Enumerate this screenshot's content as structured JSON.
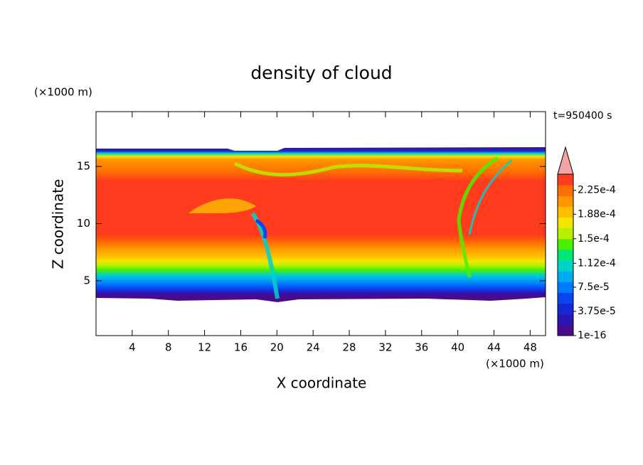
{
  "chart_data": {
    "type": "contour",
    "title": "density of cloud",
    "x_label": "X coordinate",
    "y_label": "Z coordinate",
    "x_unit": "(×1000 m)",
    "y_unit": "(×1000 m)",
    "annotation": "t=950400 s",
    "xlim": [
      0,
      49.7
    ],
    "xticks": [
      4,
      8,
      12,
      16,
      20,
      24,
      28,
      32,
      36,
      40,
      44,
      48
    ],
    "ylim": [
      0.2,
      19.8
    ],
    "yticks": [
      5,
      10,
      15
    ],
    "colorbar": {
      "clim": [
        1e-16,
        0.00025
      ],
      "ticks": [
        {
          "value": 1e-16,
          "label": "1e-16"
        },
        {
          "value": 3.75e-05,
          "label": "3.75e-5"
        },
        {
          "value": 7.5e-05,
          "label": "7.5e-5"
        },
        {
          "value": 0.000112,
          "label": "1.12e-4"
        },
        {
          "value": 0.00015,
          "label": "1.5e-4"
        },
        {
          "value": 0.000188,
          "label": "1.88e-4"
        },
        {
          "value": 0.000225,
          "label": "2.25e-4"
        }
      ],
      "colors": [
        "#4a0a8a",
        "#2a14b4",
        "#1428d2",
        "#0a46f0",
        "#0078ff",
        "#00aaf0",
        "#00d2c8",
        "#00e678",
        "#4af000",
        "#b4f000",
        "#f0e600",
        "#ffbe00",
        "#ff9600",
        "#ff6e00",
        "#ff3c1e"
      ],
      "extend_color": "#f4a4a4"
    }
  }
}
